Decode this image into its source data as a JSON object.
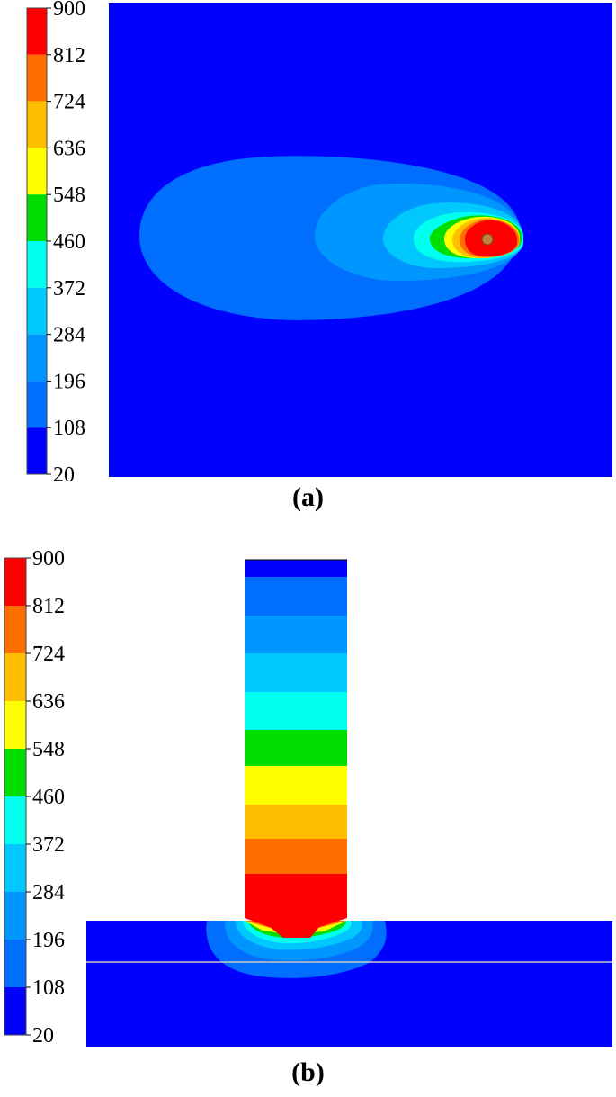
{
  "colorbar": {
    "ticks": [
      "900",
      "812",
      "724",
      "636",
      "548",
      "460",
      "372",
      "284",
      "196",
      "108",
      "20"
    ],
    "colors": [
      "#ff0000",
      "#ff6f00",
      "#ffbf00",
      "#ffff00",
      "#00dd00",
      "#00ffee",
      "#00c8ff",
      "#0096ff",
      "#006eff",
      "#0000ff"
    ]
  },
  "panel_a": {
    "caption": "(a)"
  },
  "panel_b": {
    "caption": "(b)"
  }
}
